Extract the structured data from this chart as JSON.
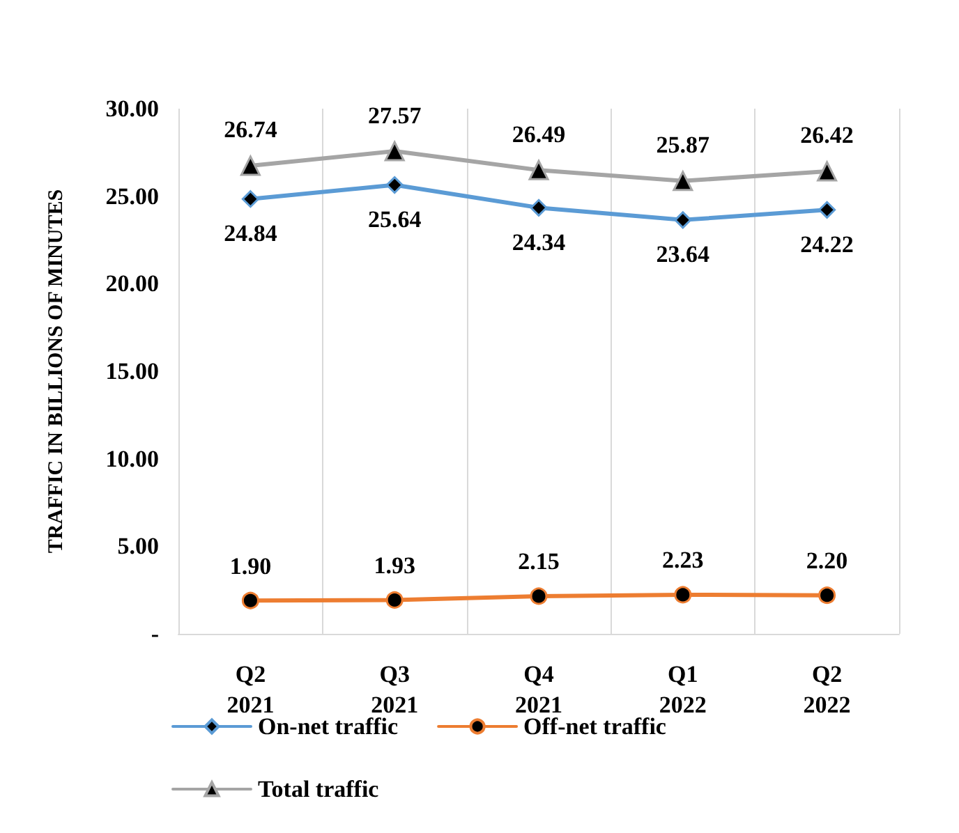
{
  "chart_data": {
    "type": "line",
    "ylabel": "TRAFFIC IN BILLIONS OF MINUTES",
    "categories": [
      "Q2\n2021",
      "Q3\n2021",
      "Q4\n2021",
      "Q1\n2022",
      "Q2\n2022"
    ],
    "series": [
      {
        "name": "On-net traffic",
        "color": "#5b9bd5",
        "marker": "diamond",
        "values": [
          24.84,
          25.64,
          24.34,
          23.64,
          24.22
        ],
        "value_labels": [
          "24.84",
          "25.64",
          "24.34",
          "23.64",
          "24.22"
        ]
      },
      {
        "name": "Off-net traffic",
        "color": "#ed7d31",
        "marker": "circle",
        "values": [
          1.9,
          1.93,
          2.15,
          2.23,
          2.2
        ],
        "value_labels": [
          "1.90",
          "1.93",
          "2.15",
          "2.23",
          "2.20"
        ]
      },
      {
        "name": "Total traffic",
        "color": "#a5a5a5",
        "marker": "triangle",
        "values": [
          26.74,
          27.57,
          26.49,
          25.87,
          26.42
        ],
        "value_labels": [
          "26.74",
          "27.57",
          "26.49",
          "25.87",
          "26.42"
        ]
      }
    ],
    "ylim": [
      0,
      30
    ],
    "yticks": [
      {
        "value": 0,
        "label": "-"
      },
      {
        "value": 5,
        "label": "5.00"
      },
      {
        "value": 10,
        "label": "10.00"
      },
      {
        "value": 15,
        "label": "15.00"
      },
      {
        "value": 20,
        "label": "20.00"
      },
      {
        "value": 25,
        "label": "25.00"
      },
      {
        "value": 30,
        "label": "30.00"
      }
    ],
    "grid": "x",
    "legend": "bottom",
    "line_style": "solid"
  }
}
